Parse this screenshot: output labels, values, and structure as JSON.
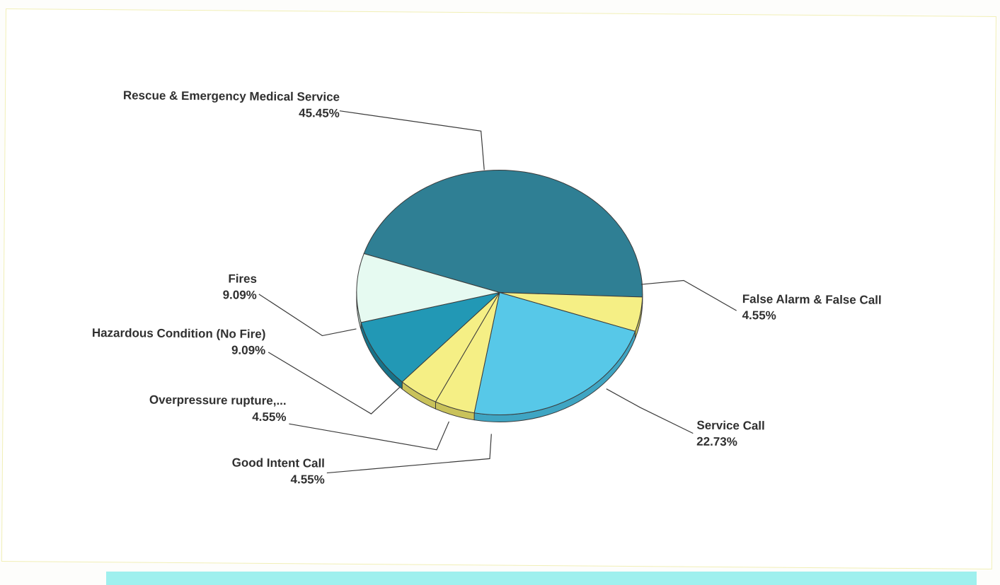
{
  "chart_data": {
    "type": "pie",
    "title": "",
    "labels": [
      "Rescue & Emergency Medical Service",
      "False Alarm & False Call",
      "Service Call",
      "Good Intent Call",
      "Overpressure rupture,...",
      "Hazardous Condition (No Fire)",
      "Fires"
    ],
    "values": [
      45.45,
      4.55,
      22.73,
      4.55,
      4.55,
      9.09,
      9.09
    ],
    "value_labels": [
      "45.45%",
      "4.55%",
      "22.73%",
      "4.55%",
      "4.55%",
      "9.09%",
      "9.09%"
    ],
    "colors": [
      "#2f7f94",
      "#f5ef85",
      "#57c8e8",
      "#f5ef85",
      "#f5ef85",
      "#2298b5",
      "#e6faf1"
    ],
    "side_colors": [
      "#1f5b6b",
      "#c9c25a",
      "#3fa5c3",
      "#c9c25a",
      "#c9c25a",
      "#17738a",
      "#c2d9cd"
    ],
    "style": "3d",
    "legend": "none"
  }
}
